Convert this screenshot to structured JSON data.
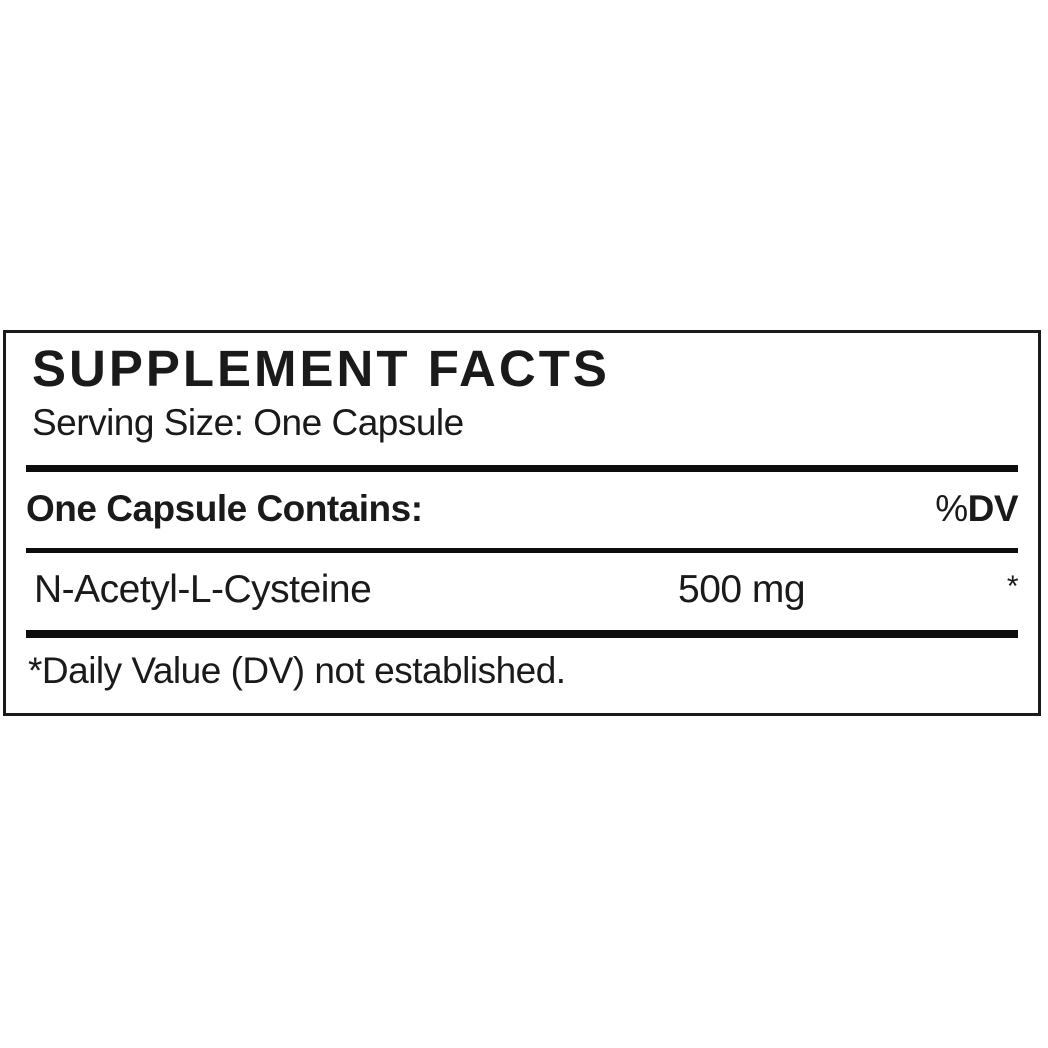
{
  "label": {
    "title": "SUPPLEMENT FACTS",
    "serving_size": "Serving Size: One Capsule",
    "header": {
      "contains_label": "One Capsule Contains:",
      "percent_sign": "%",
      "dv_label": "DV"
    },
    "rows": [
      {
        "name": "N-Acetyl-L-Cysteine",
        "amount": "500 mg",
        "dv": "*"
      }
    ],
    "footnote": "*Daily Value (DV) not established.",
    "colors": {
      "text": "#1a1a1a",
      "rule": "#0d0d0d",
      "background": "#ffffff",
      "border": "#1a1a1a"
    }
  }
}
